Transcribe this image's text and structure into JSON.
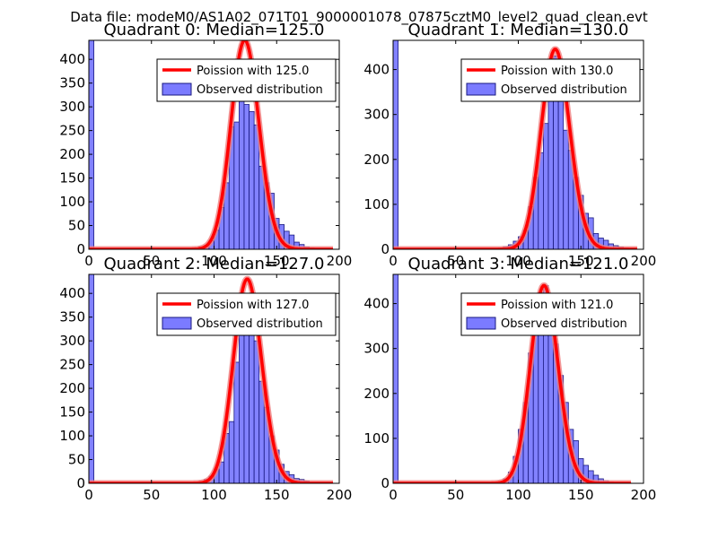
{
  "figure": {
    "suptitle": "Data file: modeM0/AS1A02_071T01_9000001078_07875cztM0_level2_quad_clean.evt"
  },
  "colors": {
    "histogram_fill": "#7b7bff",
    "histogram_edge": "#1a1a80",
    "poisson_line": "#ff0000",
    "poisson_line_glow": "#f08080",
    "axes": "#000000",
    "legend_edge": "#000000"
  },
  "chart_data": [
    {
      "type": "bar",
      "title": "Quadrant 0: Median=125.0",
      "xlim": [
        0,
        200
      ],
      "ylim": [
        0,
        440
      ],
      "xticks": [
        "0",
        "50",
        "100",
        "150",
        "200"
      ],
      "yticks": [
        "0",
        "50",
        "100",
        "150",
        "200",
        "250",
        "300",
        "350",
        "400"
      ],
      "legend": {
        "position": "top-right",
        "entries": [
          "Poission with 125.0",
          "Observed distribution"
        ]
      },
      "series": [
        {
          "name": "Observed distribution",
          "kind": "histogram",
          "bins": [
            {
              "x0": 0,
              "x1": 4,
              "y": 440
            },
            {
              "x0": 84,
              "x1": 88,
              "y": 2
            },
            {
              "x0": 88,
              "x1": 92,
              "y": 5
            },
            {
              "x0": 92,
              "x1": 96,
              "y": 8
            },
            {
              "x0": 96,
              "x1": 100,
              "y": 18
            },
            {
              "x0": 100,
              "x1": 104,
              "y": 40
            },
            {
              "x0": 104,
              "x1": 108,
              "y": 88
            },
            {
              "x0": 108,
              "x1": 112,
              "y": 140
            },
            {
              "x0": 112,
              "x1": 116,
              "y": 258
            },
            {
              "x0": 116,
              "x1": 120,
              "y": 268
            },
            {
              "x0": 120,
              "x1": 124,
              "y": 325
            },
            {
              "x0": 124,
              "x1": 128,
              "y": 305
            },
            {
              "x0": 128,
              "x1": 132,
              "y": 290
            },
            {
              "x0": 132,
              "x1": 136,
              "y": 262
            },
            {
              "x0": 136,
              "x1": 140,
              "y": 175
            },
            {
              "x0": 140,
              "x1": 144,
              "y": 140
            },
            {
              "x0": 144,
              "x1": 148,
              "y": 118
            },
            {
              "x0": 148,
              "x1": 152,
              "y": 65
            },
            {
              "x0": 152,
              "x1": 156,
              "y": 52
            },
            {
              "x0": 156,
              "x1": 160,
              "y": 38
            },
            {
              "x0": 160,
              "x1": 164,
              "y": 30
            },
            {
              "x0": 164,
              "x1": 168,
              "y": 15
            },
            {
              "x0": 168,
              "x1": 172,
              "y": 10
            },
            {
              "x0": 172,
              "x1": 176,
              "y": 5
            },
            {
              "x0": 176,
              "x1": 180,
              "y": 3
            },
            {
              "x0": 180,
              "x1": 184,
              "y": 2
            }
          ]
        },
        {
          "name": "Poission with 125.0",
          "kind": "poisson",
          "mean": 125.0,
          "peak": 440,
          "x_start": 0,
          "x_end": 195
        }
      ]
    },
    {
      "type": "bar",
      "title": "Quadrant 1: Median=130.0",
      "xlim": [
        0,
        200
      ],
      "ylim": [
        0,
        465
      ],
      "xticks": [
        "0",
        "50",
        "100",
        "150",
        "200"
      ],
      "yticks": [
        "0",
        "100",
        "200",
        "300",
        "400"
      ],
      "legend": {
        "position": "top-right",
        "entries": [
          "Poission with 130.0",
          "Observed distribution"
        ]
      },
      "series": [
        {
          "name": "Observed distribution",
          "kind": "histogram",
          "bins": [
            {
              "x0": 0,
              "x1": 4,
              "y": 465
            },
            {
              "x0": 84,
              "x1": 88,
              "y": 3
            },
            {
              "x0": 88,
              "x1": 92,
              "y": 6
            },
            {
              "x0": 92,
              "x1": 96,
              "y": 10
            },
            {
              "x0": 96,
              "x1": 100,
              "y": 18
            },
            {
              "x0": 100,
              "x1": 104,
              "y": 28
            },
            {
              "x0": 104,
              "x1": 108,
              "y": 42
            },
            {
              "x0": 108,
              "x1": 112,
              "y": 95
            },
            {
              "x0": 112,
              "x1": 116,
              "y": 160
            },
            {
              "x0": 116,
              "x1": 120,
              "y": 215
            },
            {
              "x0": 120,
              "x1": 124,
              "y": 280
            },
            {
              "x0": 124,
              "x1": 128,
              "y": 345
            },
            {
              "x0": 128,
              "x1": 132,
              "y": 430
            },
            {
              "x0": 132,
              "x1": 136,
              "y": 382
            },
            {
              "x0": 136,
              "x1": 140,
              "y": 265
            },
            {
              "x0": 140,
              "x1": 144,
              "y": 220
            },
            {
              "x0": 144,
              "x1": 148,
              "y": 160
            },
            {
              "x0": 148,
              "x1": 152,
              "y": 120
            },
            {
              "x0": 152,
              "x1": 156,
              "y": 80
            },
            {
              "x0": 156,
              "x1": 160,
              "y": 70
            },
            {
              "x0": 160,
              "x1": 164,
              "y": 35
            },
            {
              "x0": 164,
              "x1": 168,
              "y": 25
            },
            {
              "x0": 168,
              "x1": 172,
              "y": 20
            },
            {
              "x0": 172,
              "x1": 176,
              "y": 12
            },
            {
              "x0": 176,
              "x1": 180,
              "y": 8
            },
            {
              "x0": 180,
              "x1": 184,
              "y": 5
            },
            {
              "x0": 184,
              "x1": 188,
              "y": 3
            }
          ]
        },
        {
          "name": "Poission with 130.0",
          "kind": "poisson",
          "mean": 130.0,
          "peak": 445,
          "x_start": 0,
          "x_end": 195
        }
      ]
    },
    {
      "type": "bar",
      "title": "Quadrant 2: Median=127.0",
      "xlim": [
        0,
        200
      ],
      "ylim": [
        0,
        440
      ],
      "xticks": [
        "0",
        "50",
        "100",
        "150",
        "200"
      ],
      "yticks": [
        "0",
        "50",
        "100",
        "150",
        "200",
        "250",
        "300",
        "350",
        "400"
      ],
      "legend": {
        "position": "top-right",
        "entries": [
          "Poission with 127.0",
          "Observed distribution"
        ]
      },
      "series": [
        {
          "name": "Observed distribution",
          "kind": "histogram",
          "bins": [
            {
              "x0": 0,
              "x1": 4,
              "y": 440
            },
            {
              "x0": 84,
              "x1": 88,
              "y": 2
            },
            {
              "x0": 88,
              "x1": 92,
              "y": 4
            },
            {
              "x0": 92,
              "x1": 96,
              "y": 8
            },
            {
              "x0": 96,
              "x1": 100,
              "y": 15
            },
            {
              "x0": 100,
              "x1": 104,
              "y": 30
            },
            {
              "x0": 104,
              "x1": 108,
              "y": 45
            },
            {
              "x0": 108,
              "x1": 112,
              "y": 105
            },
            {
              "x0": 112,
              "x1": 116,
              "y": 130
            },
            {
              "x0": 116,
              "x1": 120,
              "y": 255
            },
            {
              "x0": 120,
              "x1": 124,
              "y": 335
            },
            {
              "x0": 124,
              "x1": 128,
              "y": 375
            },
            {
              "x0": 128,
              "x1": 132,
              "y": 400
            },
            {
              "x0": 132,
              "x1": 136,
              "y": 300
            },
            {
              "x0": 136,
              "x1": 140,
              "y": 215
            },
            {
              "x0": 140,
              "x1": 144,
              "y": 160
            },
            {
              "x0": 144,
              "x1": 148,
              "y": 100
            },
            {
              "x0": 148,
              "x1": 152,
              "y": 70
            },
            {
              "x0": 152,
              "x1": 156,
              "y": 40
            },
            {
              "x0": 156,
              "x1": 160,
              "y": 25
            },
            {
              "x0": 160,
              "x1": 164,
              "y": 18
            },
            {
              "x0": 164,
              "x1": 168,
              "y": 10
            },
            {
              "x0": 168,
              "x1": 172,
              "y": 8
            },
            {
              "x0": 172,
              "x1": 176,
              "y": 5
            },
            {
              "x0": 176,
              "x1": 180,
              "y": 2
            }
          ]
        },
        {
          "name": "Poission with 127.0",
          "kind": "poisson",
          "mean": 127.0,
          "peak": 430,
          "x_start": 0,
          "x_end": 195
        }
      ]
    },
    {
      "type": "bar",
      "title": "Quadrant 3: Median=121.0",
      "xlim": [
        0,
        200
      ],
      "ylim": [
        0,
        465
      ],
      "xticks": [
        "0",
        "50",
        "100",
        "150",
        "200"
      ],
      "yticks": [
        "0",
        "100",
        "200",
        "300",
        "400"
      ],
      "legend": {
        "position": "top-right",
        "entries": [
          "Poission with 121.0",
          "Observed distribution"
        ]
      },
      "series": [
        {
          "name": "Observed distribution",
          "kind": "histogram",
          "bins": [
            {
              "x0": 0,
              "x1": 4,
              "y": 465
            },
            {
              "x0": 80,
              "x1": 84,
              "y": 2
            },
            {
              "x0": 84,
              "x1": 88,
              "y": 4
            },
            {
              "x0": 88,
              "x1": 92,
              "y": 10
            },
            {
              "x0": 92,
              "x1": 96,
              "y": 25
            },
            {
              "x0": 96,
              "x1": 100,
              "y": 60
            },
            {
              "x0": 100,
              "x1": 104,
              "y": 120
            },
            {
              "x0": 104,
              "x1": 108,
              "y": 180
            },
            {
              "x0": 108,
              "x1": 112,
              "y": 290
            },
            {
              "x0": 112,
              "x1": 116,
              "y": 380
            },
            {
              "x0": 116,
              "x1": 120,
              "y": 425
            },
            {
              "x0": 120,
              "x1": 124,
              "y": 440
            },
            {
              "x0": 124,
              "x1": 128,
              "y": 380
            },
            {
              "x0": 128,
              "x1": 132,
              "y": 310
            },
            {
              "x0": 132,
              "x1": 136,
              "y": 240
            },
            {
              "x0": 136,
              "x1": 140,
              "y": 180
            },
            {
              "x0": 140,
              "x1": 144,
              "y": 120
            },
            {
              "x0": 144,
              "x1": 148,
              "y": 95
            },
            {
              "x0": 148,
              "x1": 152,
              "y": 55
            },
            {
              "x0": 152,
              "x1": 156,
              "y": 40
            },
            {
              "x0": 156,
              "x1": 160,
              "y": 28
            },
            {
              "x0": 160,
              "x1": 164,
              "y": 18
            },
            {
              "x0": 164,
              "x1": 168,
              "y": 10
            },
            {
              "x0": 168,
              "x1": 172,
              "y": 6
            },
            {
              "x0": 172,
              "x1": 176,
              "y": 3
            }
          ]
        },
        {
          "name": "Poission with 121.0",
          "kind": "poisson",
          "mean": 121.0,
          "peak": 440,
          "x_start": 0,
          "x_end": 190
        }
      ]
    }
  ]
}
